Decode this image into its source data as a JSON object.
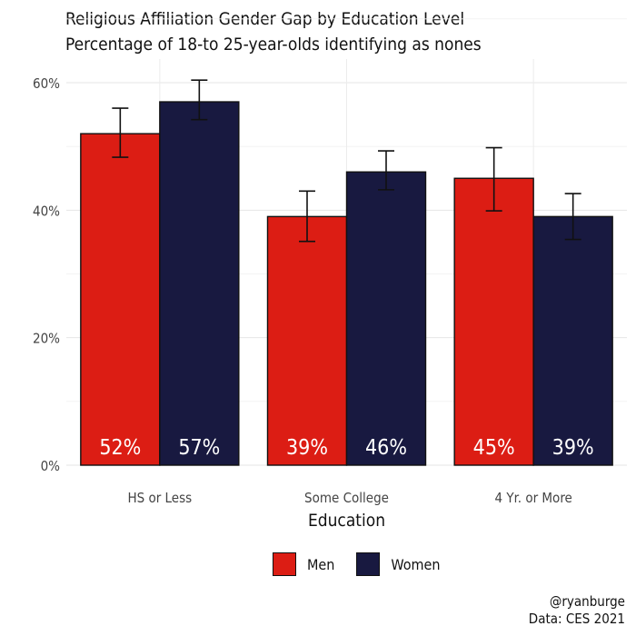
{
  "title": "Religious Affiliation Gender Gap by Education Level",
  "subtitle": "Percentage of 18-to 25-year-olds identifying as nones",
  "credit": {
    "author": "@ryanburge",
    "source": "Data: CES 2021"
  },
  "chart_data": {
    "type": "bar",
    "categories": [
      "HS or Less",
      "Some College",
      "4 Yr. or More"
    ],
    "series": [
      {
        "name": "Men",
        "color": "#dc1d14",
        "values": [
          52,
          39,
          45
        ],
        "labels": [
          "52%",
          "39%",
          "45%"
        ],
        "error_low": [
          48.3,
          35.1,
          39.9
        ],
        "error_high": [
          56.0,
          43.0,
          49.8
        ]
      },
      {
        "name": "Women",
        "color": "#181940",
        "values": [
          57,
          46,
          39
        ],
        "labels": [
          "57%",
          "46%",
          "39%"
        ],
        "error_low": [
          54.2,
          43.2,
          35.4
        ],
        "error_high": [
          60.4,
          49.3,
          42.6
        ]
      }
    ],
    "xlabel": "Education",
    "ylabel": "",
    "ylim": [
      0,
      60
    ],
    "yticks": [
      0,
      20,
      40,
      60
    ],
    "ytick_labels": [
      "0%",
      "20%",
      "40%",
      "60%"
    ],
    "grid": true,
    "legend": "bottom"
  }
}
